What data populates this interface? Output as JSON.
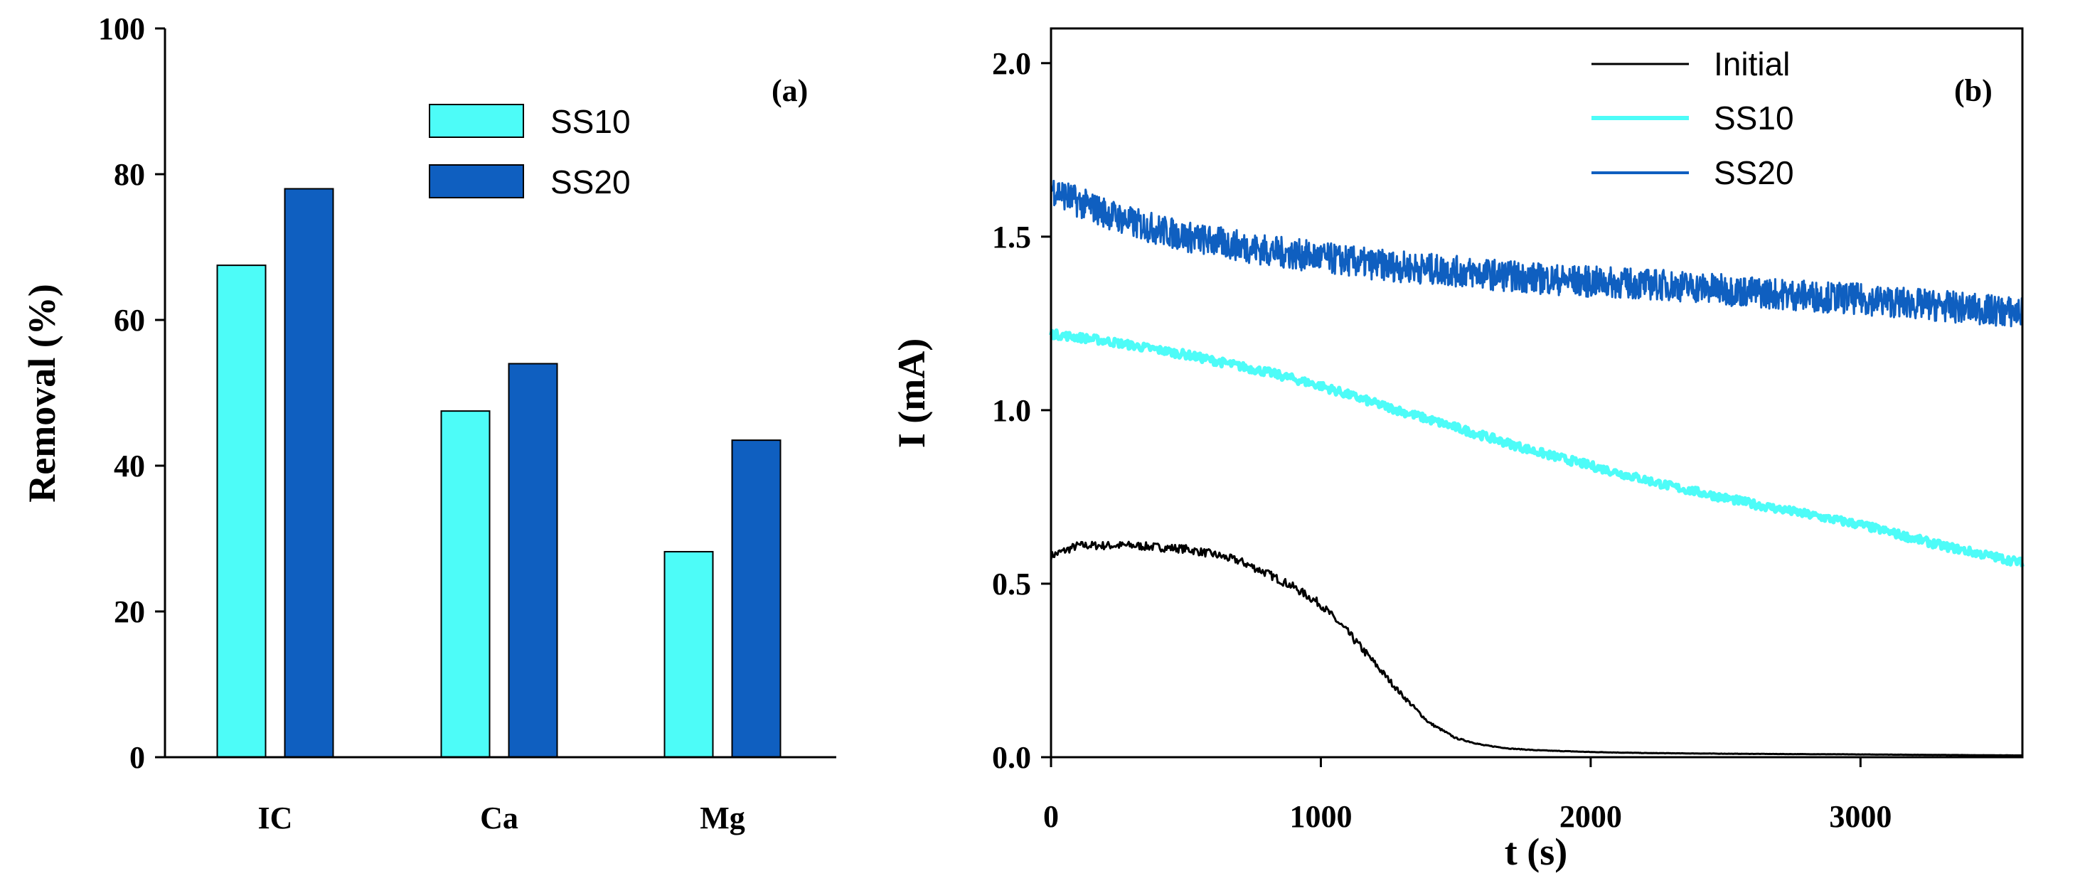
{
  "chart_data": [
    {
      "id": "a",
      "type": "bar",
      "panel_label": "(a)",
      "ylabel": "Removal (%)",
      "xlabel": "",
      "ylim": [
        0,
        100
      ],
      "yticks": [
        "0",
        "20",
        "40",
        "60",
        "80",
        "100"
      ],
      "categories": [
        "IC",
        "Ca",
        "Mg"
      ],
      "series": [
        {
          "name": "SS10",
          "color": "#4dfcf8",
          "values": [
            67.5,
            47.5,
            28.2
          ]
        },
        {
          "name": "SS20",
          "color": "#0f5fc0",
          "values": [
            78.0,
            54.0,
            43.5
          ]
        }
      ],
      "legend_position": "top-center"
    },
    {
      "id": "b",
      "type": "line",
      "panel_label": "(b)",
      "xlabel": "t (s)",
      "ylabel": "I (mA)",
      "xlim": [
        0,
        3600
      ],
      "ylim": [
        0,
        2.1
      ],
      "xticks": [
        "0",
        "1000",
        "2000",
        "3000"
      ],
      "yticks": [
        "0.0",
        "0.5",
        "1.0",
        "1.5",
        "2.0"
      ],
      "legend_position": "top-right",
      "series": [
        {
          "name": "Initial",
          "color": "#000000",
          "noise": 0.012,
          "x": [
            0,
            100,
            200,
            300,
            400,
            500,
            600,
            700,
            800,
            900,
            1000,
            1100,
            1200,
            1300,
            1400,
            1500,
            1600,
            1700,
            1800,
            2000,
            2200,
            2500,
            3000,
            3600
          ],
          "y": [
            0.58,
            0.61,
            0.61,
            0.61,
            0.605,
            0.6,
            0.585,
            0.565,
            0.53,
            0.49,
            0.44,
            0.36,
            0.27,
            0.18,
            0.1,
            0.055,
            0.035,
            0.025,
            0.02,
            0.015,
            0.012,
            0.01,
            0.008,
            0.005
          ]
        },
        {
          "name": "SS10",
          "color": "#4dfcf8",
          "noise": 0.012,
          "x": [
            0,
            200,
            500,
            800,
            1000,
            1200,
            1500,
            1800,
            2000,
            2300,
            2600,
            3000,
            3300,
            3600
          ],
          "y": [
            1.22,
            1.2,
            1.16,
            1.11,
            1.07,
            1.02,
            0.95,
            0.88,
            0.84,
            0.78,
            0.73,
            0.67,
            0.61,
            0.56
          ]
        },
        {
          "name": "SS20",
          "color": "#0f5fc0",
          "noise": 0.045,
          "x": [
            0,
            100,
            300,
            500,
            800,
            1000,
            1200,
            1500,
            1800,
            2000,
            2300,
            2600,
            3000,
            3300,
            3600
          ],
          "y": [
            1.64,
            1.6,
            1.54,
            1.5,
            1.46,
            1.44,
            1.42,
            1.4,
            1.38,
            1.37,
            1.36,
            1.34,
            1.32,
            1.3,
            1.28
          ]
        }
      ]
    }
  ]
}
